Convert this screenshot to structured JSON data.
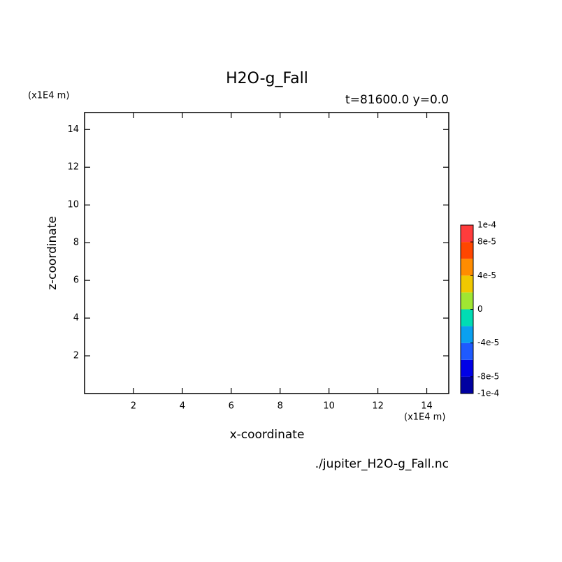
{
  "chart_data": {
    "type": "contour",
    "title": "H2O-g_Fall",
    "subtitle": "t=81600.0 y=0.0",
    "xlabel": "x-coordinate",
    "ylabel": "z-coordinate",
    "x_unit": "(x1E4 m)",
    "y_unit": "(x1E4 m)",
    "source": "./jupiter_H2O-g_Fall.nc",
    "xlim": [
      0,
      14.9
    ],
    "ylim": [
      0,
      14.9
    ],
    "xticks": [
      2,
      4,
      6,
      8,
      10,
      12,
      14
    ],
    "yticks": [
      2,
      4,
      6,
      8,
      10,
      12,
      14
    ],
    "colorbar": {
      "levels": [
        -0.0001,
        -8e-05,
        -6e-05,
        -4e-05,
        -2e-05,
        0,
        2e-05,
        4e-05,
        6e-05,
        8e-05,
        0.0001
      ],
      "colors": [
        "#0000a0",
        "#0000e6",
        "#1e5aff",
        "#0aa0f0",
        "#00dcb4",
        "#a0e632",
        "#f0c800",
        "#ff8c00",
        "#ff4600",
        "#ff3c3c"
      ],
      "ticks": [
        {
          "value": 0.0001,
          "label": "1e-4"
        },
        {
          "value": 8e-05,
          "label": "8e-5"
        },
        {
          "value": 4e-05,
          "label": "4e-5"
        },
        0,
        {
          "value": -4e-05,
          "label": "-4e-5"
        },
        {
          "value": -8e-05,
          "label": "-8e-5"
        },
        {
          "value": -0.0001,
          "label": "-1e-4"
        }
      ]
    }
  }
}
